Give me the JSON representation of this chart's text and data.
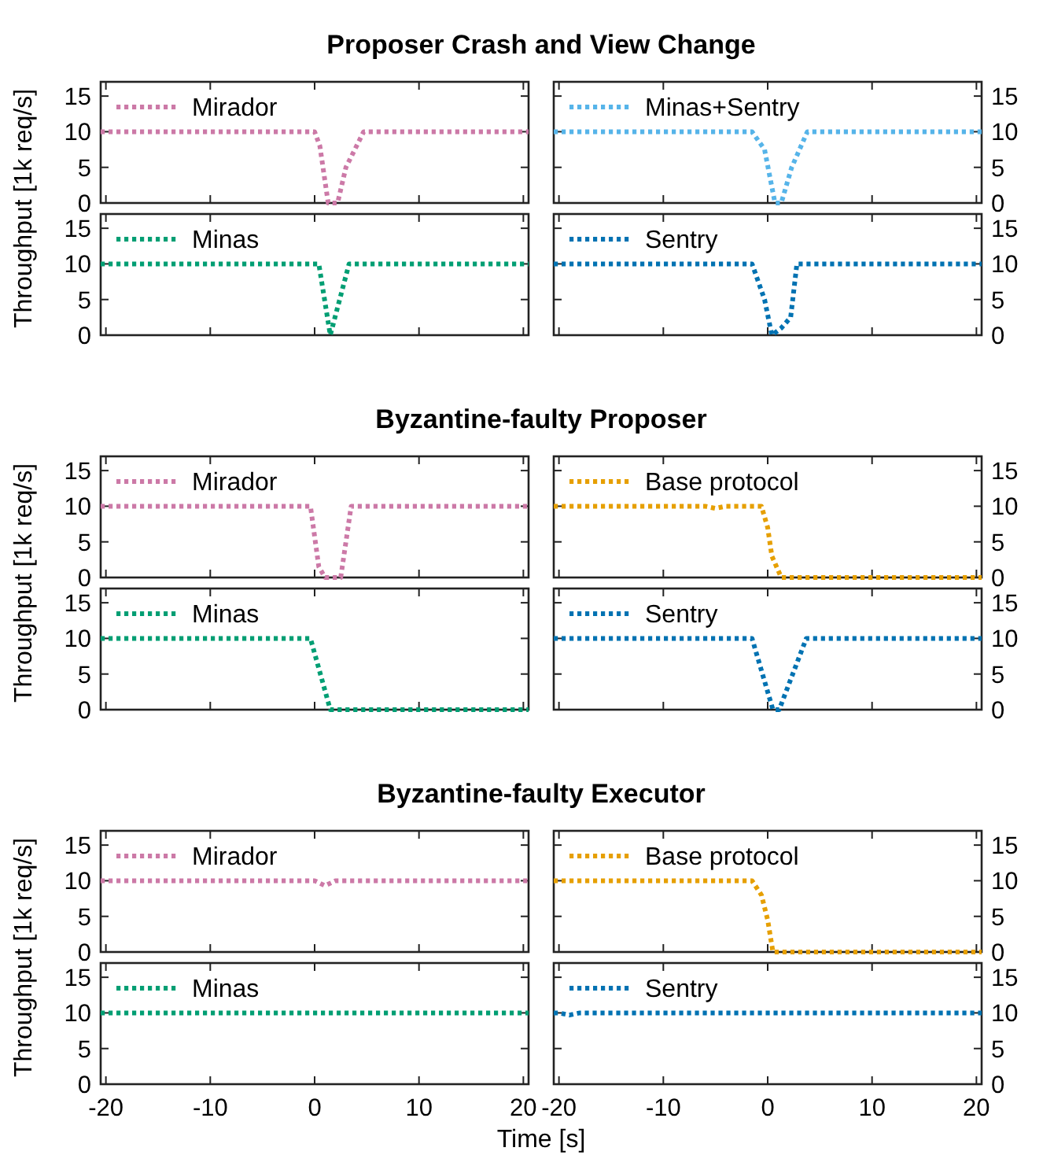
{
  "chart_data": [
    {
      "type": "line",
      "title": "Proposer Crash and View Change",
      "ylabel": "Throughput [1k req/s]",
      "xlim": [
        -20.5,
        20.5
      ],
      "xticks": [
        {
          "value": -20,
          "label": null
        },
        {
          "value": -10,
          "label": null
        },
        {
          "value": 0,
          "label": null
        },
        {
          "value": 10,
          "label": null
        },
        {
          "value": 20,
          "label": null
        }
      ],
      "ylim": [
        0,
        17
      ],
      "yticks": [
        0,
        5,
        10,
        15
      ],
      "tick_labels": "y",
      "legend": "top left",
      "line_style": "dotted",
      "marker": "none",
      "series": [
        {
          "name": "Mirador",
          "color": "#cc79a7",
          "x": [
            -20.5,
            -10,
            0,
            0.5,
            1.3,
            2.2,
            3,
            4.7,
            20.5
          ],
          "values": [
            10,
            10,
            10,
            8,
            0,
            0,
            5,
            10,
            10
          ]
        }
      ]
    },
    {
      "type": "line",
      "xlim": [
        -20.5,
        20.5
      ],
      "xticks": [
        {
          "value": -20,
          "label": null
        },
        {
          "value": -10,
          "label": null
        },
        {
          "value": 0,
          "label": null
        },
        {
          "value": 10,
          "label": null
        },
        {
          "value": 20,
          "label": null
        }
      ],
      "ylim": [
        0,
        17
      ],
      "yticks": [
        0,
        5,
        10,
        15
      ],
      "tick_labels": "y",
      "legend": "top left",
      "line_style": "dotted",
      "marker": "none",
      "series": [
        {
          "name": "Minas+Sentry",
          "color": "#56b4e9",
          "x": [
            -20.5,
            -1.5,
            -0.3,
            0.7,
            1.3,
            2.3,
            3.8,
            20.5
          ],
          "values": [
            10,
            10,
            7.5,
            0,
            0,
            5,
            10,
            10
          ]
        }
      ]
    },
    {
      "type": "line",
      "xlim": [
        -20.5,
        20.5
      ],
      "xticks": [
        {
          "value": -20,
          "label": null
        },
        {
          "value": -10,
          "label": null
        },
        {
          "value": 0,
          "label": null
        },
        {
          "value": 10,
          "label": null
        },
        {
          "value": 20,
          "label": null
        }
      ],
      "ylim": [
        0,
        17
      ],
      "yticks": [
        0,
        5,
        10,
        15
      ],
      "tick_labels": "y",
      "legend": "top left",
      "line_style": "dotted",
      "marker": "none",
      "series": [
        {
          "name": "Minas",
          "color": "#009e73",
          "x": [
            -20.5,
            0.4,
            1.5,
            3.3,
            20.5
          ],
          "values": [
            10,
            10,
            0,
            10,
            10
          ]
        }
      ]
    },
    {
      "type": "line",
      "xlim": [
        -20.5,
        20.5
      ],
      "xticks": [
        {
          "value": -20,
          "label": null
        },
        {
          "value": -10,
          "label": null
        },
        {
          "value": 0,
          "label": null
        },
        {
          "value": 10,
          "label": null
        },
        {
          "value": 20,
          "label": null
        }
      ],
      "ylim": [
        0,
        17
      ],
      "yticks": [
        0,
        5,
        10,
        15
      ],
      "tick_labels": "y",
      "legend": "top left",
      "line_style": "dotted",
      "marker": "none",
      "series": [
        {
          "name": "Sentry",
          "color": "#0072b2",
          "x": [
            -20.5,
            -1.5,
            -0.3,
            0.4,
            1.3,
            2.2,
            2.8,
            20.5
          ],
          "values": [
            10,
            10,
            5,
            0,
            1,
            2.5,
            10,
            10
          ]
        }
      ]
    },
    {
      "type": "line",
      "title": "Byzantine-faulty Proposer",
      "ylabel": "Throughput [1k req/s]",
      "xlim": [
        -20.5,
        20.5
      ],
      "xticks": [
        {
          "value": -20,
          "label": null
        },
        {
          "value": -10,
          "label": null
        },
        {
          "value": 0,
          "label": null
        },
        {
          "value": 10,
          "label": null
        },
        {
          "value": 20,
          "label": null
        }
      ],
      "ylim": [
        0,
        17
      ],
      "yticks": [
        0,
        5,
        10,
        15
      ],
      "tick_labels": "y",
      "legend": "top left",
      "line_style": "dotted",
      "marker": "none",
      "series": [
        {
          "name": "Mirador",
          "color": "#cc79a7",
          "x": [
            -20.5,
            -0.4,
            0.4,
            1,
            2.5,
            3.5,
            20.5
          ],
          "values": [
            10,
            10,
            1.5,
            0,
            0,
            10,
            10
          ]
        }
      ]
    },
    {
      "type": "line",
      "xlim": [
        -20.5,
        20.5
      ],
      "xticks": [
        {
          "value": -20,
          "label": null
        },
        {
          "value": -10,
          "label": null
        },
        {
          "value": 0,
          "label": null
        },
        {
          "value": 10,
          "label": null
        },
        {
          "value": 20,
          "label": null
        }
      ],
      "ylim": [
        0,
        17
      ],
      "yticks": [
        0,
        5,
        10,
        15
      ],
      "tick_labels": "y",
      "legend": "top left",
      "line_style": "dotted",
      "marker": "none",
      "series": [
        {
          "name": "Base protocol",
          "color": "#e69f00",
          "x": [
            -20.5,
            -6,
            -5,
            -4,
            -0.6,
            0,
            0.4,
            1.3,
            20.5
          ],
          "values": [
            10,
            10,
            9.7,
            10,
            10,
            7,
            3,
            0,
            0
          ]
        }
      ]
    },
    {
      "type": "line",
      "xlim": [
        -20.5,
        20.5
      ],
      "xticks": [
        {
          "value": -20,
          "label": null
        },
        {
          "value": -10,
          "label": null
        },
        {
          "value": 0,
          "label": null
        },
        {
          "value": 10,
          "label": null
        },
        {
          "value": 20,
          "label": null
        }
      ],
      "ylim": [
        0,
        17
      ],
      "yticks": [
        0,
        5,
        10,
        15
      ],
      "tick_labels": "y",
      "legend": "top left",
      "line_style": "dotted",
      "marker": "none",
      "series": [
        {
          "name": "Minas",
          "color": "#009e73",
          "x": [
            -20.5,
            -0.4,
            1.5,
            20.5
          ],
          "values": [
            10,
            10,
            0,
            0
          ]
        }
      ]
    },
    {
      "type": "line",
      "xlim": [
        -20.5,
        20.5
      ],
      "xticks": [
        {
          "value": -20,
          "label": null
        },
        {
          "value": -10,
          "label": null
        },
        {
          "value": 0,
          "label": null
        },
        {
          "value": 10,
          "label": null
        },
        {
          "value": 20,
          "label": null
        }
      ],
      "ylim": [
        0,
        17
      ],
      "yticks": [
        0,
        5,
        10,
        15
      ],
      "tick_labels": "y",
      "legend": "top left",
      "line_style": "dotted",
      "marker": "none",
      "series": [
        {
          "name": "Sentry",
          "color": "#0072b2",
          "x": [
            -20.5,
            -1.5,
            0.5,
            1.1,
            3.7,
            20.5
          ],
          "values": [
            10,
            10,
            0,
            0,
            10,
            10
          ]
        }
      ]
    },
    {
      "type": "line",
      "title": "Byzantine-faulty Executor",
      "ylabel": "Throughput [1k req/s]",
      "xlim": [
        -20.5,
        20.5
      ],
      "xticks": [
        {
          "value": -20,
          "label": null
        },
        {
          "value": -10,
          "label": null
        },
        {
          "value": 0,
          "label": null
        },
        {
          "value": 10,
          "label": null
        },
        {
          "value": 20,
          "label": null
        }
      ],
      "ylim": [
        0,
        17
      ],
      "yticks": [
        0,
        5,
        10,
        15
      ],
      "tick_labels": "y",
      "legend": "top left",
      "line_style": "dotted",
      "marker": "none",
      "series": [
        {
          "name": "Mirador",
          "color": "#cc79a7",
          "x": [
            -20.5,
            0,
            1,
            2,
            20.5
          ],
          "values": [
            10,
            10,
            9.3,
            10,
            10
          ]
        }
      ]
    },
    {
      "type": "line",
      "xlim": [
        -20.5,
        20.5
      ],
      "xticks": [
        {
          "value": -20,
          "label": null
        },
        {
          "value": -10,
          "label": null
        },
        {
          "value": 0,
          "label": null
        },
        {
          "value": 10,
          "label": null
        },
        {
          "value": 20,
          "label": null
        }
      ],
      "ylim": [
        0,
        17
      ],
      "yticks": [
        0,
        5,
        10,
        15
      ],
      "tick_labels": "y",
      "legend": "top left",
      "line_style": "dotted",
      "marker": "none",
      "series": [
        {
          "name": "Base protocol",
          "color": "#e69f00",
          "x": [
            -20.5,
            -1.5,
            -0.6,
            0,
            0.5,
            20.5
          ],
          "values": [
            10,
            10,
            8,
            4.5,
            0,
            0
          ]
        }
      ]
    },
    {
      "type": "line",
      "xlabel": "Time [s]",
      "xlim": [
        -20.5,
        20.5
      ],
      "xticks": [
        -20,
        -10,
        0,
        10,
        20
      ],
      "ylim": [
        0,
        17
      ],
      "yticks": [
        0,
        5,
        10,
        15
      ],
      "legend": "top left",
      "line_style": "dotted",
      "marker": "none",
      "series": [
        {
          "name": "Minas",
          "color": "#009e73",
          "x": [
            -20.5,
            20.5
          ],
          "values": [
            10,
            10
          ]
        }
      ]
    },
    {
      "type": "line",
      "xlim": [
        -20.5,
        20.5
      ],
      "xticks": [
        -20,
        -10,
        0,
        10,
        20
      ],
      "ylim": [
        0,
        17
      ],
      "yticks": [
        0,
        5,
        10,
        15
      ],
      "legend": "top left",
      "line_style": "dotted",
      "marker": "none",
      "series": [
        {
          "name": "Sentry",
          "color": "#0072b2",
          "x": [
            -20.5,
            -20,
            -19,
            -18,
            20.5
          ],
          "values": [
            10,
            10,
            9.7,
            10,
            10
          ]
        }
      ]
    }
  ]
}
